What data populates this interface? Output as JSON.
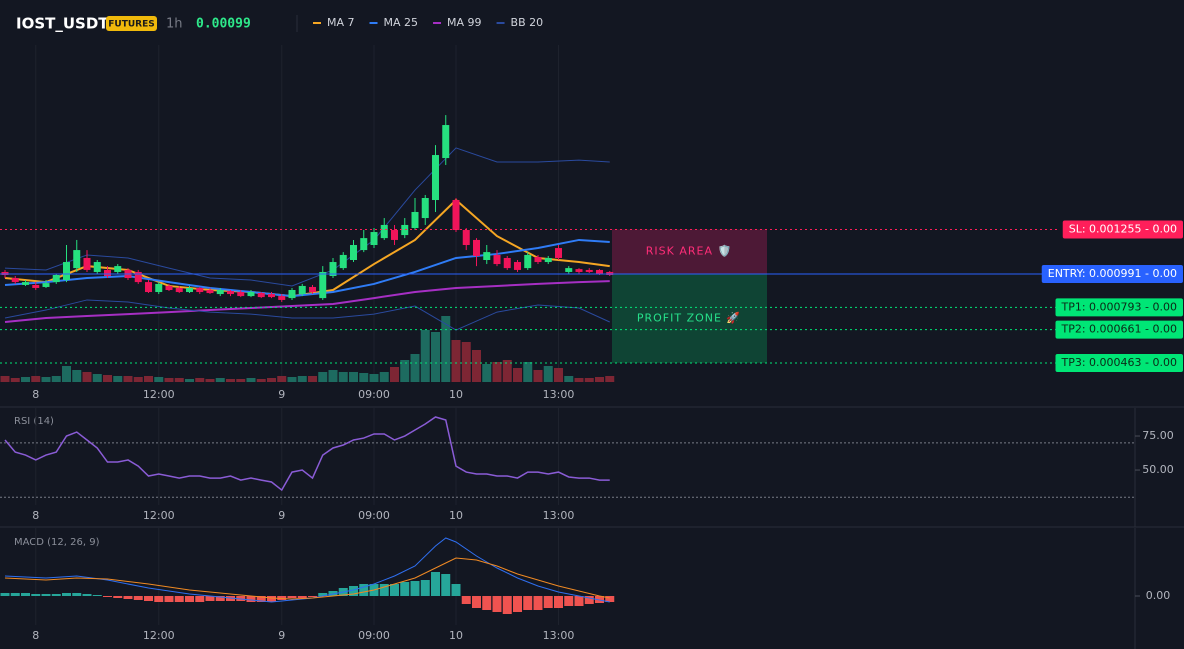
{
  "header": {
    "symbol": "IOST_USDT",
    "badge": "FUTURES",
    "interval": "1h",
    "price": 0.00099
  },
  "chart_data": [
    {
      "type": "candlestick",
      "categories": [
        null,
        null,
        null,
        "8",
        null,
        null,
        null,
        null,
        null,
        null,
        null,
        null,
        null,
        null,
        null,
        "12:00",
        null,
        null,
        null,
        null,
        null,
        null,
        null,
        null,
        null,
        null,
        null,
        "9",
        null,
        null,
        null,
        null,
        null,
        null,
        null,
        null,
        "09:00",
        null,
        null,
        null,
        null,
        null,
        null,
        null,
        "10",
        null,
        null,
        null,
        null,
        null,
        null,
        null,
        null,
        null,
        "13:00",
        null,
        null,
        null,
        null,
        null
      ],
      "open": [
        0.001003,
        0.000967,
        0.000926,
        0.000926,
        0.000914,
        0.000943,
        0.000955,
        0.001026,
        0.001086,
        0.001003,
        0.001015,
        0.001003,
        0.001015,
        0.001003,
        0.000943,
        0.000884,
        0.00092,
        0.000908,
        0.000884,
        0.000908,
        0.000896,
        0.000872,
        0.00089,
        0.000884,
        0.00086,
        0.000878,
        0.000872,
        0.00086,
        0.000848,
        0.000872,
        0.000914,
        0.000848,
        0.000979,
        0.001026,
        0.001074,
        0.001133,
        0.001163,
        0.001204,
        0.001252,
        0.001222,
        0.001264,
        0.001323,
        0.00143,
        0.001679,
        0.00143,
        0.001252,
        0.001193,
        0.001074,
        0.001104,
        0.001086,
        0.001062,
        0.001026,
        0.001092,
        0.001062,
        0.001145,
        0.001003,
        0.00102,
        0.001015,
        0.001015,
        0.001003
      ],
      "high": [
        0.001015,
        0.000979,
        0.000955,
        0.000943,
        0.000955,
        0.000991,
        0.001163,
        0.001193,
        0.001133,
        0.001074,
        0.001038,
        0.00105,
        0.001026,
        0.001015,
        0.000955,
        0.000943,
        0.000932,
        0.00092,
        0.00092,
        0.000914,
        0.000908,
        0.000908,
        0.000896,
        0.000896,
        0.000896,
        0.000884,
        0.000884,
        0.000872,
        0.000908,
        0.000932,
        0.000926,
        0.001038,
        0.001086,
        0.001121,
        0.001193,
        0.001252,
        0.001264,
        0.001323,
        0.001282,
        0.001323,
        0.001442,
        0.00146,
        0.001756,
        0.001934,
        0.001442,
        0.001264,
        0.001204,
        0.001163,
        0.001133,
        0.001098,
        0.001074,
        0.001121,
        0.001104,
        0.001098,
        0.001163,
        0.001038,
        0.001026,
        0.001026,
        0.00102,
        0.001009
      ],
      "low": [
        0.000967,
        0.000932,
        0.00092,
        0.000896,
        0.000908,
        0.000932,
        0.000943,
        0.001003,
        0.001003,
        0.000991,
        0.000967,
        0.000991,
        0.000955,
        0.000932,
        0.000878,
        0.000872,
        0.00089,
        0.000878,
        0.000878,
        0.000872,
        0.000872,
        0.00086,
        0.00086,
        0.000854,
        0.000854,
        0.000848,
        0.000848,
        0.000825,
        0.000837,
        0.00086,
        0.000872,
        0.000837,
        0.000967,
        0.001015,
        0.001062,
        0.001121,
        0.001145,
        0.001193,
        0.001163,
        0.001204,
        0.001252,
        0.001282,
        0.001359,
        0.001638,
        0.00124,
        0.001133,
        0.001038,
        0.00105,
        0.001038,
        0.001015,
        0.001003,
        0.001015,
        0.00105,
        0.00105,
        0.001074,
        0.000991,
        0.000991,
        0.000997,
        0.000985,
        0.000979
      ],
      "close": [
        0.000985,
        0.000943,
        0.000943,
        0.000908,
        0.000937,
        0.000985,
        0.001062,
        0.001133,
        0.001015,
        0.001062,
        0.000979,
        0.001038,
        0.000967,
        0.000943,
        0.000884,
        0.000932,
        0.000896,
        0.000884,
        0.000908,
        0.000884,
        0.000878,
        0.000896,
        0.000872,
        0.00086,
        0.000884,
        0.000854,
        0.000854,
        0.000837,
        0.000896,
        0.00092,
        0.000884,
        0.001003,
        0.001062,
        0.001104,
        0.001163,
        0.001204,
        0.00124,
        0.001282,
        0.001193,
        0.001282,
        0.001359,
        0.001442,
        0.001697,
        0.001875,
        0.001252,
        0.001163,
        0.001098,
        0.001121,
        0.00105,
        0.001026,
        0.001015,
        0.001104,
        0.001062,
        0.001086,
        0.001086,
        0.001026,
        0.001003,
        0.001003,
        0.000991,
        0.000985
      ],
      "up_color": "#26e07f",
      "down_color": "#f0145a",
      "ylim": [
        0.00035,
        0.00235
      ],
      "volume": [
        6,
        4,
        5,
        6,
        5,
        6,
        16,
        12,
        10,
        8,
        7,
        6,
        6,
        5,
        6,
        5,
        4,
        4,
        3,
        4,
        3,
        4,
        3,
        3,
        4,
        3,
        4,
        6,
        5,
        6,
        6,
        10,
        12,
        10,
        10,
        9,
        8,
        10,
        15,
        22,
        28,
        52,
        50,
        66,
        42,
        40,
        32,
        18,
        20,
        22,
        14,
        20,
        12,
        16,
        14,
        6,
        4,
        4,
        5,
        6
      ],
      "vlim": [
        0,
        100
      ],
      "volume_up_color": "#1d6b60",
      "volume_down_color": "#7d2634",
      "lines": [
        {
          "name": "MA 7",
          "color": "#f5a623",
          "x": [
            0,
            4,
            8,
            12,
            16,
            20,
            24,
            28,
            32,
            36,
            40,
            44,
            48,
            52,
            56,
            59
          ],
          "values": [
            0.000967,
            0.000943,
            0.001038,
            0.001015,
            0.00092,
            0.000896,
            0.000884,
            0.00086,
            0.000896,
            0.00105,
            0.001193,
            0.00143,
            0.001216,
            0.001086,
            0.001062,
            0.001038
          ]
        },
        {
          "name": "MA 25",
          "color": "#2f7cf6",
          "x": [
            0,
            4,
            8,
            12,
            16,
            20,
            24,
            28,
            32,
            36,
            40,
            44,
            48,
            52,
            56,
            59
          ],
          "values": [
            0.000926,
            0.000943,
            0.000967,
            0.000979,
            0.000943,
            0.000908,
            0.000884,
            0.00086,
            0.000884,
            0.000932,
            0.001003,
            0.001086,
            0.00111,
            0.001145,
            0.001193,
            0.001181
          ]
        },
        {
          "name": "MA 99",
          "color": "#a62fc4",
          "x": [
            0,
            4,
            8,
            12,
            16,
            20,
            24,
            28,
            32,
            36,
            40,
            44,
            48,
            52,
            56,
            59
          ],
          "values": [
            0.000706,
            0.00073,
            0.000742,
            0.000753,
            0.000765,
            0.000777,
            0.000789,
            0.000801,
            0.000813,
            0.000848,
            0.000884,
            0.000908,
            0.00092,
            0.000932,
            0.000943,
            0.000949
          ]
        },
        {
          "name": "BB 20",
          "color": "#2a4a9e",
          "x": [
            0,
            4,
            8,
            12,
            16,
            20,
            24,
            28,
            32,
            36,
            40,
            44,
            48,
            52,
            56,
            59
          ],
          "values": [
            0.001026,
            0.001015,
            0.001104,
            0.001086,
            0.001026,
            0.000967,
            0.000955,
            0.00092,
            0.001015,
            0.001193,
            0.001489,
            0.001739,
            0.001656,
            0.001656,
            0.001667,
            0.001656
          ],
          "lower": [
            0.00073,
            0.000777,
            0.000837,
            0.000825,
            0.000789,
            0.000765,
            0.000753,
            0.00073,
            0.00073,
            0.000753,
            0.000801,
            0.000658,
            0.000765,
            0.000807,
            0.000789,
            0.000706
          ]
        }
      ],
      "levels": [
        {
          "label": "SL: 0.001255 - 0.00",
          "value": 0.001255,
          "color": "#ff1f5a",
          "text_color": "#ffffff",
          "dashed": true
        },
        {
          "label": "ENTRY: 0.000991 - 0.00",
          "value": 0.000991,
          "color": "#2962ff",
          "text_color": "#ffffff",
          "dashed": false
        },
        {
          "label": "TP1: 0.000793 - 0.00",
          "value": 0.000793,
          "color": "#00e676",
          "text_color": "#0b2a17",
          "dashed": true
        },
        {
          "label": "TP2: 0.000661 - 0.00",
          "value": 0.000661,
          "color": "#00e676",
          "text_color": "#0b2a17",
          "dashed": true
        },
        {
          "label": "TP3: 0.000463 - 0.00",
          "value": 0.000463,
          "color": "#00e676",
          "text_color": "#0b2a17",
          "dashed": true
        }
      ],
      "zones": [
        {
          "label": "RISK AREA 🛡️",
          "range": [
            0.000991,
            0.001255
          ],
          "color": "#4d1936",
          "text_color": "#ff2d78"
        },
        {
          "label": "PROFIT ZONE 🚀",
          "range": [
            0.000463,
            0.000991
          ],
          "color": "#0f4434",
          "text_color": "#26e08a"
        }
      ]
    },
    {
      "type": "line",
      "title": "RSI (14)",
      "color": "#8a5cd6",
      "values": [
        72.1,
        63.2,
        61.0,
        57.4,
        61.0,
        63.2,
        75.0,
        77.9,
        72.1,
        66.2,
        55.9,
        55.9,
        57.4,
        52.9,
        45.6,
        47.1,
        45.6,
        44.1,
        45.6,
        45.6,
        44.1,
        44.1,
        45.6,
        42.6,
        44.1,
        42.6,
        41.2,
        35.3,
        48.5,
        50.0,
        44.1,
        61.0,
        66.2,
        68.4,
        72.1,
        73.5,
        76.5,
        76.5,
        72.1,
        75.0,
        79.4,
        83.8,
        89.0,
        86.8,
        52.9,
        48.5,
        47.1,
        47.1,
        45.6,
        45.6,
        44.1,
        48.5,
        48.5,
        47.1,
        48.5,
        44.9,
        44.1,
        44.1,
        42.6,
        42.6
      ],
      "ylim": [
        24.3,
        95.6
      ],
      "yticks": [
        {
          "value": 75,
          "label": "75.00"
        },
        {
          "value": 50,
          "label": "50.00"
        }
      ],
      "levels": [
        30,
        70
      ]
    },
    {
      "type": "macd",
      "title": "MACD (12, 26, 9)",
      "histogram": [
        6e-06,
        6e-06,
        6e-06,
        4e-06,
        4e-06,
        4e-06,
        6e-06,
        6e-06,
        4e-06,
        2e-06,
        -2e-06,
        -4e-06,
        -6e-06,
        -8e-06,
        -1e-05,
        -1.2e-05,
        -1.2e-05,
        -1.2e-05,
        -1.2e-05,
        -1.2e-05,
        -1e-05,
        -1e-05,
        -1e-05,
        -1e-05,
        -1.2e-05,
        -1.2e-05,
        -1.2e-05,
        -8e-06,
        -4e-06,
        -4e-06,
        -2e-06,
        6e-06,
        1e-05,
        1.6e-05,
        2e-05,
        2.4e-05,
        2.4e-05,
        2.4e-05,
        2.4e-05,
        2.8e-05,
        3e-05,
        3.2e-05,
        4.8e-05,
        4.4e-05,
        2.4e-05,
        -1.6e-05,
        -2.4e-05,
        -2.8e-05,
        -3.2e-05,
        -3.6e-05,
        -3.2e-05,
        -2.8e-05,
        -2.8e-05,
        -2.4e-05,
        -2.4e-05,
        -2e-05,
        -2e-05,
        -1.6e-05,
        -1.4e-05,
        -1.2e-05
      ],
      "hist_up_color": "#26a69a",
      "hist_down_color": "#ef5350",
      "x": [
        0,
        4,
        7,
        10,
        14,
        18,
        22,
        26,
        28,
        30,
        32,
        34,
        36,
        38,
        40,
        42,
        43,
        44,
        46,
        48,
        50,
        52,
        54,
        56,
        58,
        59
      ],
      "series": [
        {
          "color": "#2f6ff0",
          "values": [
            4e-05,
            3.6e-05,
            4e-05,
            3.2e-05,
            1.6e-05,
            4e-06,
            -4e-06,
            -1.2e-05,
            -8e-06,
            -4e-06,
            4e-06,
            1.2e-05,
            2.4e-05,
            4e-05,
            6e-05,
            0.0001,
            0.000116,
            0.000108,
            8e-05,
            5.6e-05,
            3.6e-05,
            2e-05,
            8e-06,
            0,
            -8e-06,
            -1.2e-05
          ]
        },
        {
          "color": "#f08a24",
          "values": [
            3.6e-05,
            3.2e-05,
            3.6e-05,
            3.4e-05,
            2.4e-05,
            1.2e-05,
            4e-06,
            -4e-06,
            -6e-06,
            -4e-06,
            0,
            4e-06,
            1.2e-05,
            2.4e-05,
            3.6e-05,
            5.6e-05,
            6.6e-05,
            7.6e-05,
            7.2e-05,
            6e-05,
            4.4e-05,
            3.2e-05,
            2e-05,
            1e-05,
            0,
            -4e-06
          ]
        }
      ],
      "ylim": [
        -5.8e-05,
        0.000136
      ],
      "yticks": [
        {
          "value": 0,
          "label": "0.00"
        }
      ]
    }
  ]
}
